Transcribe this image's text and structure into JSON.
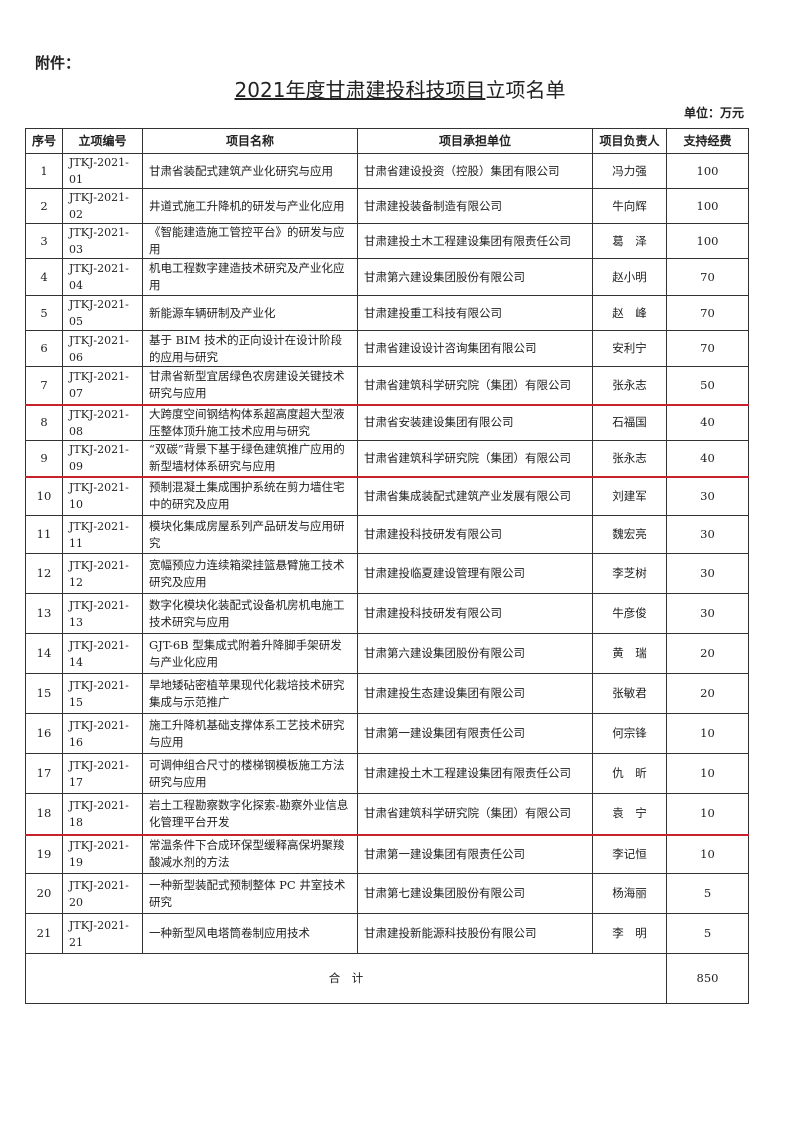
{
  "attachment_label": "附件：",
  "title_underlined": "2021年度甘肃建投科技项目",
  "title_rest": "立项名单",
  "unit_label": "单位：万元",
  "headers": [
    "序号",
    "立项编号",
    "项目名称",
    "项目承担单位",
    "项目负责人",
    "支持经费"
  ],
  "rows": [
    {
      "no": "1",
      "code": "JTKJ-2021-01",
      "name": "甘肃省装配式建筑产业化研究与应用",
      "unit": "甘肃省建设投资（控股）集团有限公司",
      "leader": "冯力强",
      "fund": "100"
    },
    {
      "no": "2",
      "code": "JTKJ-2021-02",
      "name": "井道式施工升降机的研发与产业化应用",
      "unit": "甘肃建投装备制造有限公司",
      "leader": "牛向辉",
      "fund": "100"
    },
    {
      "no": "3",
      "code": "JTKJ-2021-03",
      "name": "《智能建造施工管控平台》的研发与应用",
      "unit": "甘肃建投土木工程建设集团有限责任公司",
      "leader": "葛　泽",
      "fund": "100"
    },
    {
      "no": "4",
      "code": "JTKJ-2021-04",
      "name": "机电工程数字建造技术研究及产业化应用",
      "unit": "甘肃第六建设集团股份有限公司",
      "leader": "赵小明",
      "fund": "70"
    },
    {
      "no": "5",
      "code": "JTKJ-2021-05",
      "name": "新能源车辆研制及产业化",
      "unit": "甘肃建投重工科技有限公司",
      "leader": "赵　峰",
      "fund": "70"
    },
    {
      "no": "6",
      "code": "JTKJ-2021-06",
      "name": "基于 BIM 技术的正向设计在设计阶段的应用与研究",
      "unit": "甘肃省建设设计咨询集团有限公司",
      "leader": "安利宁",
      "fund": "70"
    },
    {
      "no": "7",
      "code": "JTKJ-2021-07",
      "name": "甘肃省新型宜居绿色农房建设关键技术研究与应用",
      "unit": "甘肃省建筑科学研究院（集团）有限公司",
      "leader": "张永志",
      "fund": "50",
      "highlight": true
    },
    {
      "no": "8",
      "code": "JTKJ-2021-08",
      "name": "大跨度空间钢结构体系超高度超大型液压整体顶升施工技术应用与研究",
      "unit": "甘肃省安装建设集团有限公司",
      "leader": "石福国",
      "fund": "40"
    },
    {
      "no": "9",
      "code": "JTKJ-2021-09",
      "name": "“双碳”背景下基于绿色建筑推广应用的新型墙材体系研究与应用",
      "unit": "甘肃省建筑科学研究院（集团）有限公司",
      "leader": "张永志",
      "fund": "40",
      "highlight": true
    },
    {
      "no": "10",
      "code": "JTKJ-2021-10",
      "name": "预制混凝土集成围护系统在剪力墙住宅中的研究及应用",
      "unit": "甘肃省集成装配式建筑产业发展有限公司",
      "leader": "刘建军",
      "fund": "30"
    },
    {
      "no": "11",
      "code": "JTKJ-2021-11",
      "name": "模块化集成房屋系列产品研发与应用研究",
      "unit": "甘肃建投科技研发有限公司",
      "leader": "魏宏亮",
      "fund": "30"
    },
    {
      "no": "12",
      "code": "JTKJ-2021-12",
      "name": "宽幅预应力连续箱梁挂篮悬臂施工技术研究及应用",
      "unit": "甘肃建投临夏建设管理有限公司",
      "leader": "李芝树",
      "fund": "30"
    },
    {
      "no": "13",
      "code": "JTKJ-2021-13",
      "name": "数字化模块化装配式设备机房机电施工技术研究与应用",
      "unit": "甘肃建投科技研发有限公司",
      "leader": "牛彦俊",
      "fund": "30"
    },
    {
      "no": "14",
      "code": "JTKJ-2021-14",
      "name": "GJT-6B 型集成式附着升降脚手架研发与产业化应用",
      "unit": "甘肃第六建设集团股份有限公司",
      "leader": "黄　瑞",
      "fund": "20"
    },
    {
      "no": "15",
      "code": "JTKJ-2021-15",
      "name": "旱地矮砧密植苹果现代化栽培技术研究集成与示范推广",
      "unit": "甘肃建投生态建设集团有限公司",
      "leader": "张敏君",
      "fund": "20"
    },
    {
      "no": "16",
      "code": "JTKJ-2021-16",
      "name": "施工升降机基础支撑体系工艺技术研究与应用",
      "unit": "甘肃第一建设集团有限责任公司",
      "leader": "何宗锋",
      "fund": "10"
    },
    {
      "no": "17",
      "code": "JTKJ-2021-17",
      "name": "可调伸组合尺寸的楼梯钢模板施工方法研究与应用",
      "unit": "甘肃建投土木工程建设集团有限责任公司",
      "leader": "仇　昕",
      "fund": "10"
    },
    {
      "no": "18",
      "code": "JTKJ-2021-18",
      "name": "岩土工程勘察数字化探索-勘察外业信息化管理平台开发",
      "unit": "甘肃省建筑科学研究院（集团）有限公司",
      "leader": "袁　宁",
      "fund": "10",
      "highlight": true
    },
    {
      "no": "19",
      "code": "JTKJ-2021-19",
      "name": "常温条件下合成环保型缓释高保坍聚羧酸减水剂的方法",
      "unit": "甘肃第一建设集团有限责任公司",
      "leader": "李记恒",
      "fund": "10"
    },
    {
      "no": "20",
      "code": "JTKJ-2021-20",
      "name": "一种新型装配式预制整体 PC 井室技术研究",
      "unit": "甘肃第七建设集团股份有限公司",
      "leader": "杨海丽",
      "fund": "5"
    },
    {
      "no": "21",
      "code": "JTKJ-2021-21",
      "name": "一种新型风电塔筒卷制应用技术",
      "unit": "甘肃建投新能源科技股份有限公司",
      "leader": "李　明",
      "fund": "5"
    }
  ],
  "total": {
    "label": "合　计",
    "fund": "850"
  },
  "colors": {
    "highlight_line": "#c8232c",
    "border": "#333333"
  }
}
